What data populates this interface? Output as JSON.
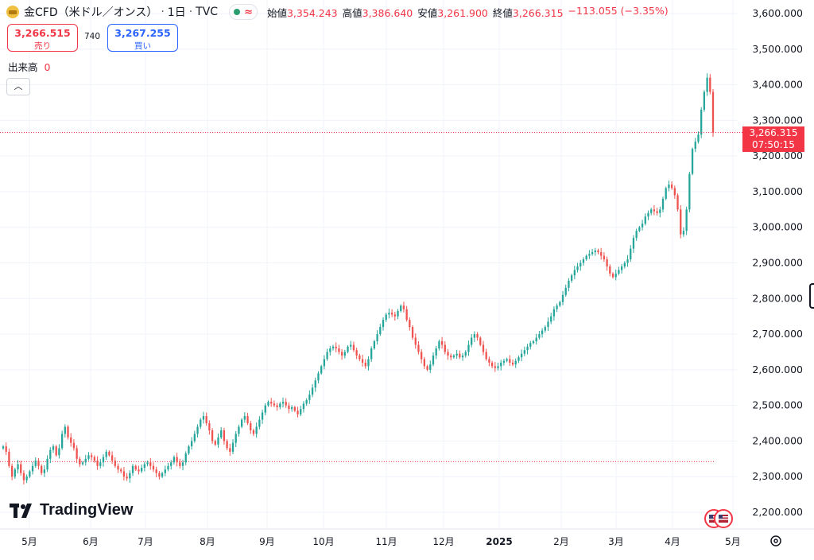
{
  "legend": {
    "symbol": "金CFD（米ドル／オンス）",
    "interval": "1日",
    "source": "TVC",
    "status_icon": "market-open-dot",
    "wave_icon": "≈",
    "open_label": "始値",
    "open": "3,354.243",
    "high_label": "高値",
    "high": "3,386.640",
    "low_label": "安値",
    "low": "3,261.900",
    "close_label": "終値",
    "close": "3,266.315",
    "change": "−113.055 (−3.35%)"
  },
  "trade": {
    "sell_price": "3,266.515",
    "sell_label": "売り",
    "spread": "740",
    "buy_price": "3,267.255",
    "buy_label": "買い"
  },
  "volume": {
    "label": "出来高",
    "value": "0"
  },
  "collapse_icon": "chevron-up-icon",
  "current_price_label": {
    "price": "3,266.315",
    "countdown": "07:50:15"
  },
  "brand": "TradingView",
  "colors": {
    "up": "#26a69a",
    "down": "#ef5350",
    "current_line": "#f23645",
    "grid": "#f0f3fa",
    "ref_line": "#f23645"
  },
  "chart_data": {
    "type": "candlestick",
    "y_axis": {
      "min": 2180,
      "max": 3620,
      "ticks": [
        "2,200.000",
        "2,300.000",
        "2,400.000",
        "2,500.000",
        "2,600.000",
        "2,700.000",
        "2,800.000",
        "2,900.000",
        "3,000.000",
        "3,100.000",
        "3,200.000",
        "3,300.000",
        "3,400.000",
        "3,500.000",
        "3,600.000"
      ]
    },
    "x_axis": {
      "labels": [
        "5月",
        "6月",
        "7月",
        "8月",
        "9月",
        "10月",
        "11月",
        "12月",
        "2025",
        "2月",
        "3月",
        "4月",
        "5月"
      ]
    },
    "current_price": 3266.315,
    "reference_line": 2342,
    "grid": true,
    "series_close": [
      2385,
      2370,
      2330,
      2300,
      2320,
      2335,
      2310,
      2290,
      2300,
      2315,
      2330,
      2345,
      2330,
      2310,
      2320,
      2350,
      2375,
      2385,
      2360,
      2380,
      2420,
      2440,
      2410,
      2395,
      2380,
      2350,
      2335,
      2340,
      2350,
      2360,
      2355,
      2345,
      2330,
      2340,
      2355,
      2370,
      2360,
      2345,
      2330,
      2320,
      2315,
      2300,
      2295,
      2310,
      2330,
      2320,
      2315,
      2325,
      2335,
      2340,
      2330,
      2320,
      2310,
      2300,
      2310,
      2320,
      2330,
      2340,
      2355,
      2340,
      2330,
      2340,
      2365,
      2385,
      2400,
      2420,
      2440,
      2460,
      2470,
      2450,
      2430,
      2400,
      2390,
      2410,
      2430,
      2400,
      2380,
      2370,
      2395,
      2420,
      2440,
      2460,
      2470,
      2450,
      2430,
      2420,
      2440,
      2460,
      2480,
      2500,
      2510,
      2505,
      2500,
      2495,
      2505,
      2510,
      2500,
      2490,
      2495,
      2485,
      2475,
      2490,
      2505,
      2515,
      2530,
      2550,
      2570,
      2590,
      2610,
      2630,
      2650,
      2660,
      2665,
      2660,
      2650,
      2640,
      2650,
      2665,
      2670,
      2655,
      2640,
      2630,
      2620,
      2610,
      2630,
      2660,
      2680,
      2700,
      2720,
      2740,
      2755,
      2760,
      2755,
      2750,
      2765,
      2780,
      2770,
      2740,
      2720,
      2690,
      2670,
      2650,
      2630,
      2610,
      2600,
      2615,
      2640,
      2660,
      2680,
      2670,
      2650,
      2640,
      2635,
      2640,
      2645,
      2635,
      2640,
      2650,
      2670,
      2690,
      2700,
      2690,
      2670,
      2650,
      2630,
      2620,
      2610,
      2605,
      2610,
      2620,
      2625,
      2630,
      2620,
      2615,
      2625,
      2635,
      2645,
      2655,
      2665,
      2675,
      2680,
      2690,
      2700,
      2710,
      2720,
      2735,
      2750,
      2770,
      2780,
      2790,
      2810,
      2830,
      2850,
      2865,
      2880,
      2890,
      2900,
      2910,
      2920,
      2925,
      2930,
      2935,
      2930,
      2920,
      2910,
      2890,
      2870,
      2860,
      2870,
      2880,
      2890,
      2900,
      2910,
      2940,
      2970,
      2990,
      3000,
      3010,
      3030,
      3040,
      3050,
      3045,
      3040,
      3050,
      3080,
      3110,
      3120,
      3110,
      3090,
      3050,
      2980,
      2990,
      3050,
      3150,
      3220,
      3240,
      3260,
      3330,
      3380,
      3420,
      3380,
      3266
    ]
  }
}
